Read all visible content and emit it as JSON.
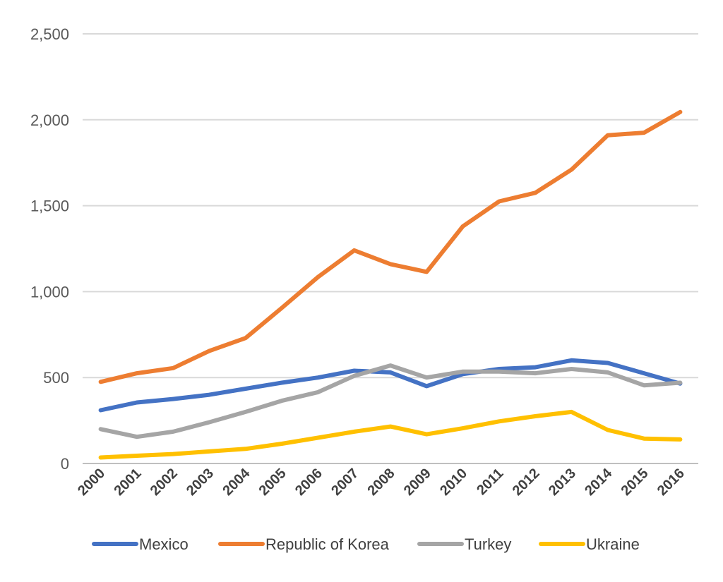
{
  "chart_data": {
    "type": "line",
    "title": "",
    "xlabel": "",
    "ylabel": "",
    "x": [
      "2000",
      "2001",
      "2002",
      "2003",
      "2004",
      "2005",
      "2006",
      "2007",
      "2008",
      "2009",
      "2010",
      "2011",
      "2012",
      "2013",
      "2014",
      "2015",
      "2016"
    ],
    "ylim": [
      0,
      2500
    ],
    "yticks": [
      "0",
      "500",
      "1,000",
      "1,500",
      "2,000",
      "2,500"
    ],
    "grid": true,
    "legend_position": "bottom",
    "series": [
      {
        "name": "Mexico",
        "color": "#4472C4",
        "values": [
          310,
          355,
          375,
          400,
          435,
          470,
          500,
          540,
          530,
          450,
          520,
          550,
          560,
          600,
          585,
          525,
          465
        ]
      },
      {
        "name": "Republic of Korea",
        "color": "#ED7D31",
        "values": [
          475,
          525,
          555,
          655,
          730,
          905,
          1085,
          1240,
          1160,
          1115,
          1380,
          1525,
          1575,
          1710,
          1910,
          1925,
          2045
        ]
      },
      {
        "name": "Turkey",
        "color": "#A5A5A5",
        "values": [
          200,
          155,
          185,
          240,
          300,
          365,
          415,
          510,
          570,
          500,
          535,
          535,
          525,
          550,
          530,
          455,
          470
        ]
      },
      {
        "name": "Ukraine",
        "color": "#FFC000",
        "values": [
          35,
          45,
          55,
          70,
          85,
          115,
          150,
          185,
          215,
          170,
          205,
          245,
          275,
          300,
          195,
          145,
          140
        ]
      }
    ]
  }
}
